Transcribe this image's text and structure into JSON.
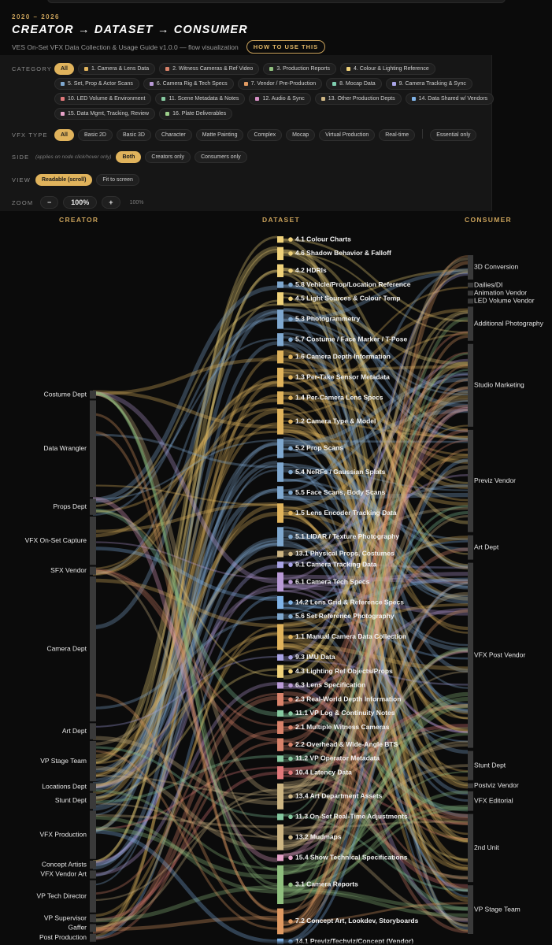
{
  "header": {
    "years": "2020 – 2026",
    "title": "CREATOR → DATASET → CONSUMER",
    "subtitle": "VES On-Set VFX Data Collection & Usage Guide v1.0.0 — flow visualization",
    "how_to": "HOW TO USE THIS"
  },
  "filters": {
    "category": {
      "label": "CATEGORY",
      "items": [
        {
          "label": "All",
          "active": true
        },
        {
          "label": "1. Camera & Lens Data",
          "color": "#e0b35c"
        },
        {
          "label": "2. Witness Cameras & Ref Video",
          "color": "#d8826a"
        },
        {
          "label": "3. Production Reports",
          "color": "#8fbf7e"
        },
        {
          "label": "4. Colour & Lighting Reference",
          "color": "#f0d27a"
        },
        {
          "label": "5. Set, Prop & Actor Scans",
          "color": "#7fa8cf"
        },
        {
          "label": "6. Camera Rig & Tech Specs",
          "color": "#b99ad6"
        },
        {
          "label": "7. Vendor / Pre-Production",
          "color": "#e09a62"
        },
        {
          "label": "8. Mocap Data",
          "color": "#7fcfb0"
        },
        {
          "label": "9. Camera Tracking & Sync",
          "color": "#a9a4e6"
        },
        {
          "label": "10. LED Volume & Environment",
          "color": "#e0787a"
        },
        {
          "label": "11. Scene Metadata & Notes",
          "color": "#86c9a0"
        },
        {
          "label": "12. Audio & Sync",
          "color": "#d48fc4"
        },
        {
          "label": "13. Other Production Depts",
          "color": "#cdb583"
        },
        {
          "label": "14. Data Shared w/ Vendors",
          "color": "#7fb2e6"
        },
        {
          "label": "15. Data Mgmt, Tracking, Review",
          "color": "#e6a2c8"
        },
        {
          "label": "16. Plate Deliverables",
          "color": "#9ccf8a"
        }
      ]
    },
    "vfx_type": {
      "label": "VFX TYPE",
      "items": [
        {
          "label": "All",
          "active": true
        },
        {
          "label": "Basic 2D"
        },
        {
          "label": "Basic 3D"
        },
        {
          "label": "Character"
        },
        {
          "label": "Matte Painting"
        },
        {
          "label": "Complex"
        },
        {
          "label": "Mocap"
        },
        {
          "label": "Virtual Production"
        },
        {
          "label": "Real-time"
        }
      ],
      "essential": "Essential only"
    },
    "side": {
      "label": "SIDE",
      "hint": "(applies on node click/hover only)",
      "items": [
        {
          "label": "Both",
          "active": true
        },
        {
          "label": "Creators only"
        },
        {
          "label": "Consumers only"
        }
      ]
    },
    "view": {
      "label": "VIEW",
      "items": [
        {
          "label": "Readable (scroll)",
          "active": true
        },
        {
          "label": "Fit to screen"
        }
      ]
    },
    "zoom": {
      "label": "ZOOM",
      "minus": "−",
      "value": "100%",
      "plus": "+",
      "readout": "100%"
    }
  },
  "columns": {
    "creator": "CREATOR",
    "dataset": "DATASET",
    "consumer": "CONSUMER"
  },
  "creators": [
    {
      "name": "Costume Dept",
      "weight": 1
    },
    {
      "name": "Data Wrangler",
      "weight": 12
    },
    {
      "name": "Props Dept",
      "weight": 2
    },
    {
      "name": "VFX On-Set Capture",
      "weight": 6
    },
    {
      "name": "SFX Vendor",
      "weight": 1
    },
    {
      "name": "Camera Dept",
      "weight": 18
    },
    {
      "name": "Art Dept",
      "weight": 2
    },
    {
      "name": "VP Stage Team",
      "weight": 5
    },
    {
      "name": "Locations Dept",
      "weight": 1
    },
    {
      "name": "Stunt Dept",
      "weight": 2
    },
    {
      "name": "VFX Production",
      "weight": 6
    },
    {
      "name": "Concept Artists",
      "weight": 1
    },
    {
      "name": "VFX Vendor Art",
      "weight": 1
    },
    {
      "name": "VP Tech Director",
      "weight": 4
    },
    {
      "name": "VP Supervisor",
      "weight": 1
    },
    {
      "name": "Gaffer",
      "weight": 1
    },
    {
      "name": "Post Production",
      "weight": 1
    }
  ],
  "datasets": [
    {
      "name": "4.1 Colour Charts",
      "color": "#f0d27a",
      "weight": 1
    },
    {
      "name": "4.6 Shadow Behavior & Falloff",
      "color": "#f0d27a",
      "weight": 2
    },
    {
      "name": "4.2 HDRIs",
      "color": "#f0d27a",
      "weight": 2
    },
    {
      "name": "5.8 Vehicle/Prop/Location Reference",
      "color": "#7fa8cf",
      "weight": 1
    },
    {
      "name": "4.5 Light Sources & Colour Temp",
      "color": "#f0d27a",
      "weight": 2
    },
    {
      "name": "5.3 Photogrammetry",
      "color": "#7fa8cf",
      "weight": 3
    },
    {
      "name": "5.7 Costume / Face Marker / T-Pose",
      "color": "#7fa8cf",
      "weight": 2
    },
    {
      "name": "1.6 Camera Depth Information",
      "color": "#e0b35c",
      "weight": 2
    },
    {
      "name": "1.3 Per-Take Sensor Metadata",
      "color": "#e0b35c",
      "weight": 3
    },
    {
      "name": "1.4 Per-Camera Lens Specs",
      "color": "#e0b35c",
      "weight": 2
    },
    {
      "name": "1.2 Camera Type & Model",
      "color": "#e0b35c",
      "weight": 4
    },
    {
      "name": "5.2 Prop Scans",
      "color": "#7fa8cf",
      "weight": 3
    },
    {
      "name": "5.4 NeRFs / Gaussian Splats",
      "color": "#7fa8cf",
      "weight": 3
    },
    {
      "name": "5.5 Face Scans, Body Scans",
      "color": "#7fa8cf",
      "weight": 2
    },
    {
      "name": "1.5 Lens Encoder Tracking Data",
      "color": "#e0b35c",
      "weight": 3
    },
    {
      "name": "5.1 LIDAR / Texture Photography",
      "color": "#7fa8cf",
      "weight": 3
    },
    {
      "name": "13.1 Physical Props, Costumes",
      "color": "#cdb583",
      "weight": 1
    },
    {
      "name": "9.1 Camera Tracking Data",
      "color": "#a9a4e6",
      "weight": 1
    },
    {
      "name": "6.1 Camera Tech Specs",
      "color": "#b99ad6",
      "weight": 3
    },
    {
      "name": "14.2 Lens Grid & Reference Specs",
      "color": "#7fb2e6",
      "weight": 2
    },
    {
      "name": "5.6 Set Reference Photography",
      "color": "#7fa8cf",
      "weight": 1
    },
    {
      "name": "1.1 Manual Camera Data Collection",
      "color": "#e0b35c",
      "weight": 4
    },
    {
      "name": "9.3 IMU Data",
      "color": "#a9a4e6",
      "weight": 1
    },
    {
      "name": "4.3 Lighting Ref Objects/Props",
      "color": "#f0d27a",
      "weight": 2
    },
    {
      "name": "6.3 Lens Specification",
      "color": "#b99ad6",
      "weight": 1
    },
    {
      "name": "2.3 Real-World Depth Information",
      "color": "#d8826a",
      "weight": 2
    },
    {
      "name": "11.1 VP Log & Continuity Notes",
      "color": "#86c9a0",
      "weight": 1
    },
    {
      "name": "2.1 Multiple Witness Cameras",
      "color": "#d8826a",
      "weight": 2
    },
    {
      "name": "2.2 Overhead & Wide-Angle BTS",
      "color": "#d8826a",
      "weight": 2
    },
    {
      "name": "11.2 VP Operator Metadata",
      "color": "#86c9a0",
      "weight": 1
    },
    {
      "name": "10.4 Latency Data",
      "color": "#e0787a",
      "weight": 2
    },
    {
      "name": "13.4 Art Department Assets",
      "color": "#cdb583",
      "weight": 4
    },
    {
      "name": "11.3 On-Set Real-Time Adjustments",
      "color": "#86c9a0",
      "weight": 1
    },
    {
      "name": "13.2 Mudmaps",
      "color": "#cdb583",
      "weight": 4
    },
    {
      "name": "15.4 Show Technical Specifications",
      "color": "#e6a2c8",
      "weight": 1
    },
    {
      "name": "3.1 Camera Reports",
      "color": "#8fbf7e",
      "weight": 6
    },
    {
      "name": "7.2 Concept Art, Lookdev, Storyboards",
      "color": "#e09a62",
      "weight": 4
    },
    {
      "name": "14.1 Previz/Techviz/Concept (Vendor)",
      "color": "#7fb2e6",
      "weight": 1
    }
  ],
  "consumers": [
    {
      "name": "3D Conversion",
      "weight": 5
    },
    {
      "name": "Dailies/DI",
      "weight": 1
    },
    {
      "name": "Animation Vendor",
      "weight": 1
    },
    {
      "name": "LED Volume Vendor",
      "weight": 1
    },
    {
      "name": "Additional Photography",
      "weight": 7
    },
    {
      "name": "Studio Marketing",
      "weight": 17
    },
    {
      "name": "Previz Vendor",
      "weight": 21
    },
    {
      "name": "Art Dept",
      "weight": 5
    },
    {
      "name": "VFX Post Vendor",
      "weight": 38
    },
    {
      "name": "Stunt Dept",
      "weight": 6
    },
    {
      "name": "Postviz Vendor",
      "weight": 1
    },
    {
      "name": "VFX Editorial",
      "weight": 4
    },
    {
      "name": "2nd Unit",
      "weight": 14
    },
    {
      "name": "VP Stage Team",
      "weight": 10
    }
  ]
}
